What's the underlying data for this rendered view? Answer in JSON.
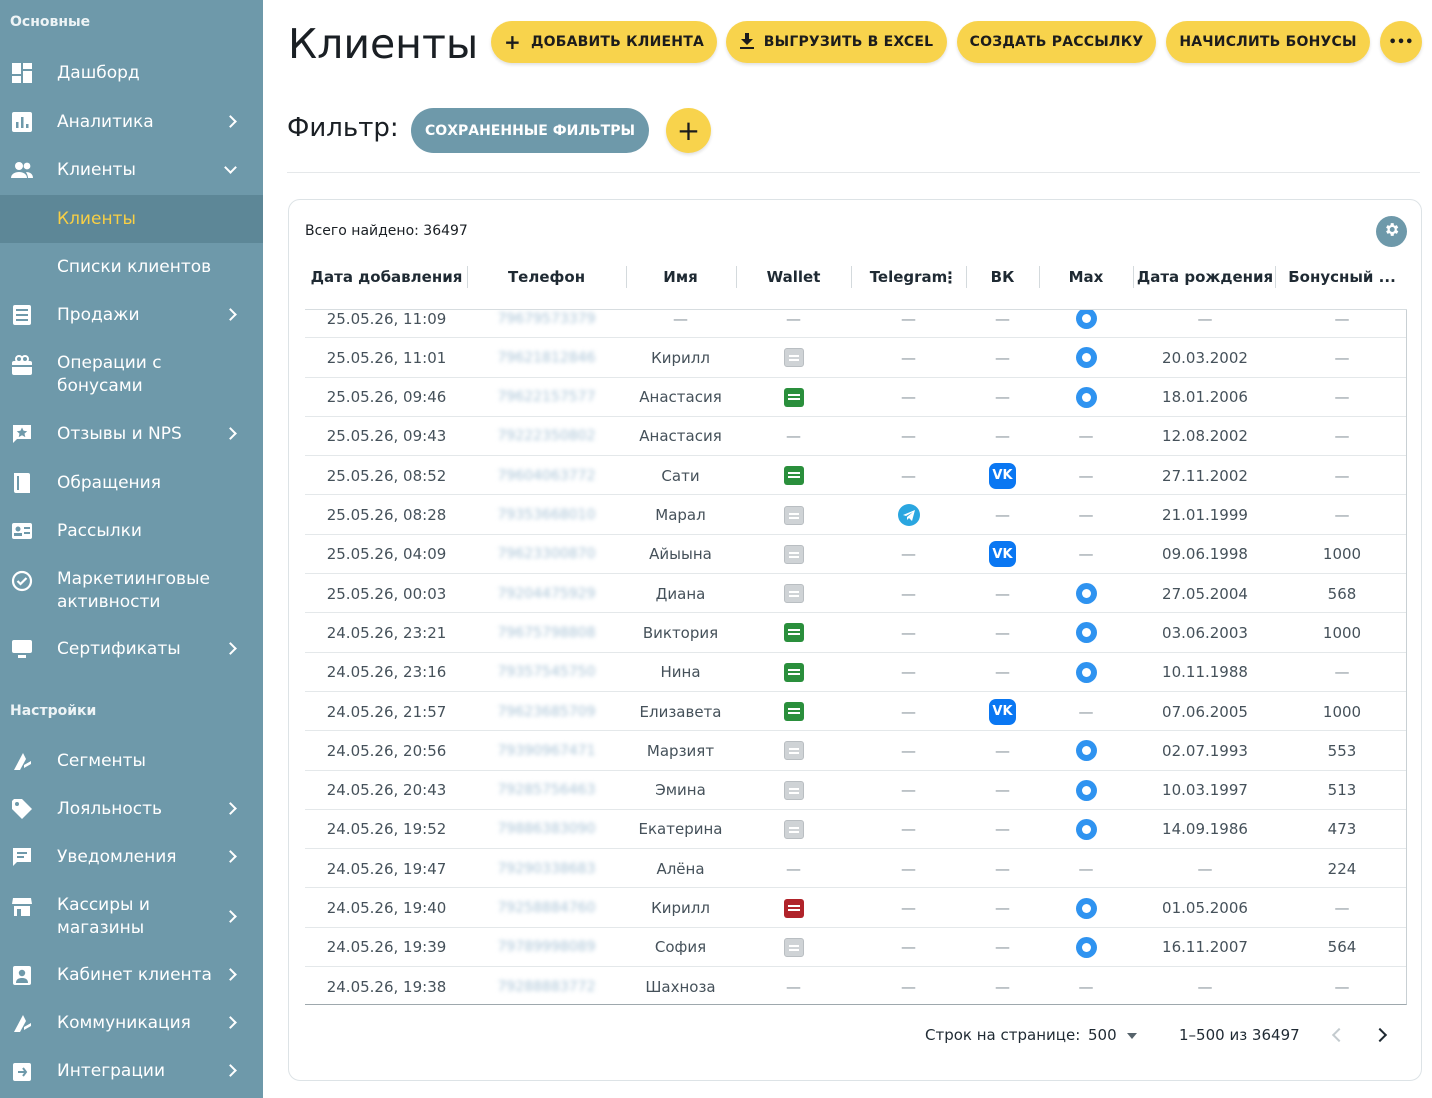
{
  "sidebar": {
    "section_main": "Основные",
    "section_settings": "Настройки",
    "items": [
      {
        "label": "Дашборд",
        "icon": "dashboard-icon"
      },
      {
        "label": "Аналитика",
        "icon": "analytics-icon"
      },
      {
        "label": "Клиенты",
        "icon": "people-icon"
      },
      {
        "label": "Клиенты"
      },
      {
        "label": "Списки клиентов"
      },
      {
        "label": "Продажи",
        "icon": "list-icon"
      },
      {
        "label": "Операции с бонусами",
        "icon": "gift-icon"
      },
      {
        "label": "Отзывы и NPS",
        "icon": "star-comment-icon"
      },
      {
        "label": "Обращения",
        "icon": "book-icon"
      },
      {
        "label": "Рассылки",
        "icon": "contact-card-icon"
      },
      {
        "label": "Маркетиинговые активности",
        "icon": "check-circle-icon"
      },
      {
        "label": "Сертификаты",
        "icon": "monitor-icon"
      },
      {
        "label": "Сегменты",
        "icon": "segment-icon"
      },
      {
        "label": "Лояльность",
        "icon": "tag-icon"
      },
      {
        "label": "Уведомления",
        "icon": "chat-icon"
      },
      {
        "label": "Кассиры и магазины",
        "icon": "store-icon"
      },
      {
        "label": "Кабинет клиента",
        "icon": "account-icon"
      },
      {
        "label": "Коммуникация",
        "icon": "communication-icon"
      },
      {
        "label": "Интеграции",
        "icon": "integration-icon"
      }
    ]
  },
  "header": {
    "title": "Клиенты",
    "add_client": "ДОБАВИТЬ КЛИЕНТА",
    "export_excel": "ВЫГРУЗИТЬ В EXCEL",
    "create_mailing": "СОЗДАТЬ РАССЫЛКУ",
    "add_bonuses": "НАЧИСЛИТЬ БОНУСЫ",
    "more": "•••"
  },
  "filter": {
    "label": "Фильтр:",
    "saved_filters": "СОХРАНЕННЫЕ ФИЛЬТРЫ",
    "add": "+"
  },
  "colors": {
    "accent": "#f8d34c",
    "sidebar": "#6e99aa",
    "vk": "#0a77f2",
    "max": "#2f93f0",
    "telegram": "#2aa6e0"
  },
  "table": {
    "total": "Всего найдено: 36497",
    "columns": [
      "Дата добавления",
      "Телефон",
      "Имя",
      "Wallet",
      "Telegram",
      "ВК",
      "Max",
      "Дата рождения",
      "Бонусный ..."
    ],
    "rows": [
      {
        "date": "25.05.26, 11:09",
        "phone": "79679573379",
        "name": "—",
        "wallet": "none",
        "telegram": "none",
        "vk": "none",
        "max": "yes",
        "birthday": "—",
        "bonus": "—"
      },
      {
        "date": "25.05.26, 11:01",
        "phone": "79621812846",
        "name": "Кирилл",
        "wallet": "gray",
        "telegram": "none",
        "vk": "none",
        "max": "yes",
        "birthday": "20.03.2002",
        "bonus": "—"
      },
      {
        "date": "25.05.26, 09:46",
        "phone": "79622157577",
        "name": "Анастасия",
        "wallet": "green",
        "telegram": "none",
        "vk": "none",
        "max": "yes",
        "birthday": "18.01.2006",
        "bonus": "—"
      },
      {
        "date": "25.05.26, 09:43",
        "phone": "79222350802",
        "name": "Анастасия",
        "wallet": "none",
        "telegram": "none",
        "vk": "none",
        "max": "none",
        "birthday": "12.08.2002",
        "bonus": "—"
      },
      {
        "date": "25.05.26, 08:52",
        "phone": "79604063772",
        "name": "Сати",
        "wallet": "green",
        "telegram": "none",
        "vk": "yes",
        "max": "none",
        "birthday": "27.11.2002",
        "bonus": "—"
      },
      {
        "date": "25.05.26, 08:28",
        "phone": "79353668010",
        "name": "Марал",
        "wallet": "gray",
        "telegram": "yes",
        "vk": "none",
        "max": "none",
        "birthday": "21.01.1999",
        "bonus": "—"
      },
      {
        "date": "25.05.26, 04:09",
        "phone": "79623300870",
        "name": "Айыына",
        "wallet": "gray",
        "telegram": "none",
        "vk": "yes",
        "max": "none",
        "birthday": "09.06.1998",
        "bonus": "1000"
      },
      {
        "date": "25.05.26, 00:03",
        "phone": "79204475929",
        "name": "Диана",
        "wallet": "gray",
        "telegram": "none",
        "vk": "none",
        "max": "yes",
        "birthday": "27.05.2004",
        "bonus": "568"
      },
      {
        "date": "24.05.26, 23:21",
        "phone": "79675798808",
        "name": "Виктория",
        "wallet": "green",
        "telegram": "none",
        "vk": "none",
        "max": "yes",
        "birthday": "03.06.2003",
        "bonus": "1000"
      },
      {
        "date": "24.05.26, 23:16",
        "phone": "79357545750",
        "name": "Нина",
        "wallet": "green",
        "telegram": "none",
        "vk": "none",
        "max": "yes",
        "birthday": "10.11.1988",
        "bonus": "—"
      },
      {
        "date": "24.05.26, 21:57",
        "phone": "79623685709",
        "name": "Елизавета",
        "wallet": "green",
        "telegram": "none",
        "vk": "yes",
        "max": "none",
        "birthday": "07.06.2005",
        "bonus": "1000"
      },
      {
        "date": "24.05.26, 20:56",
        "phone": "79390967471",
        "name": "Марзият",
        "wallet": "gray",
        "telegram": "none",
        "vk": "none",
        "max": "yes",
        "birthday": "02.07.1993",
        "bonus": "553"
      },
      {
        "date": "24.05.26, 20:43",
        "phone": "79285756463",
        "name": "Эмина",
        "wallet": "gray",
        "telegram": "none",
        "vk": "none",
        "max": "yes",
        "birthday": "10.03.1997",
        "bonus": "513"
      },
      {
        "date": "24.05.26, 19:52",
        "phone": "79886383090",
        "name": "Екатерина",
        "wallet": "gray",
        "telegram": "none",
        "vk": "none",
        "max": "yes",
        "birthday": "14.09.1986",
        "bonus": "473"
      },
      {
        "date": "24.05.26, 19:47",
        "phone": "79290338683",
        "name": "Алёна",
        "wallet": "none",
        "telegram": "none",
        "vk": "none",
        "max": "none",
        "birthday": "—",
        "bonus": "224"
      },
      {
        "date": "24.05.26, 19:40",
        "phone": "79258884760",
        "name": "Кирилл",
        "wallet": "red",
        "telegram": "none",
        "vk": "none",
        "max": "yes",
        "birthday": "01.05.2006",
        "bonus": "—"
      },
      {
        "date": "24.05.26, 19:39",
        "phone": "79789998089",
        "name": "София",
        "wallet": "gray",
        "telegram": "none",
        "vk": "none",
        "max": "yes",
        "birthday": "16.11.2007",
        "bonus": "564"
      },
      {
        "date": "24.05.26, 19:38",
        "phone": "79288883772",
        "name": "Шахноза",
        "wallet": "none",
        "telegram": "none",
        "vk": "none",
        "max": "none",
        "birthday": "—",
        "bonus": "—"
      }
    ]
  },
  "pagination": {
    "rows_per_page_label": "Строк на странице:",
    "rows_per_page": "500",
    "range": "1–500 из 36497"
  }
}
